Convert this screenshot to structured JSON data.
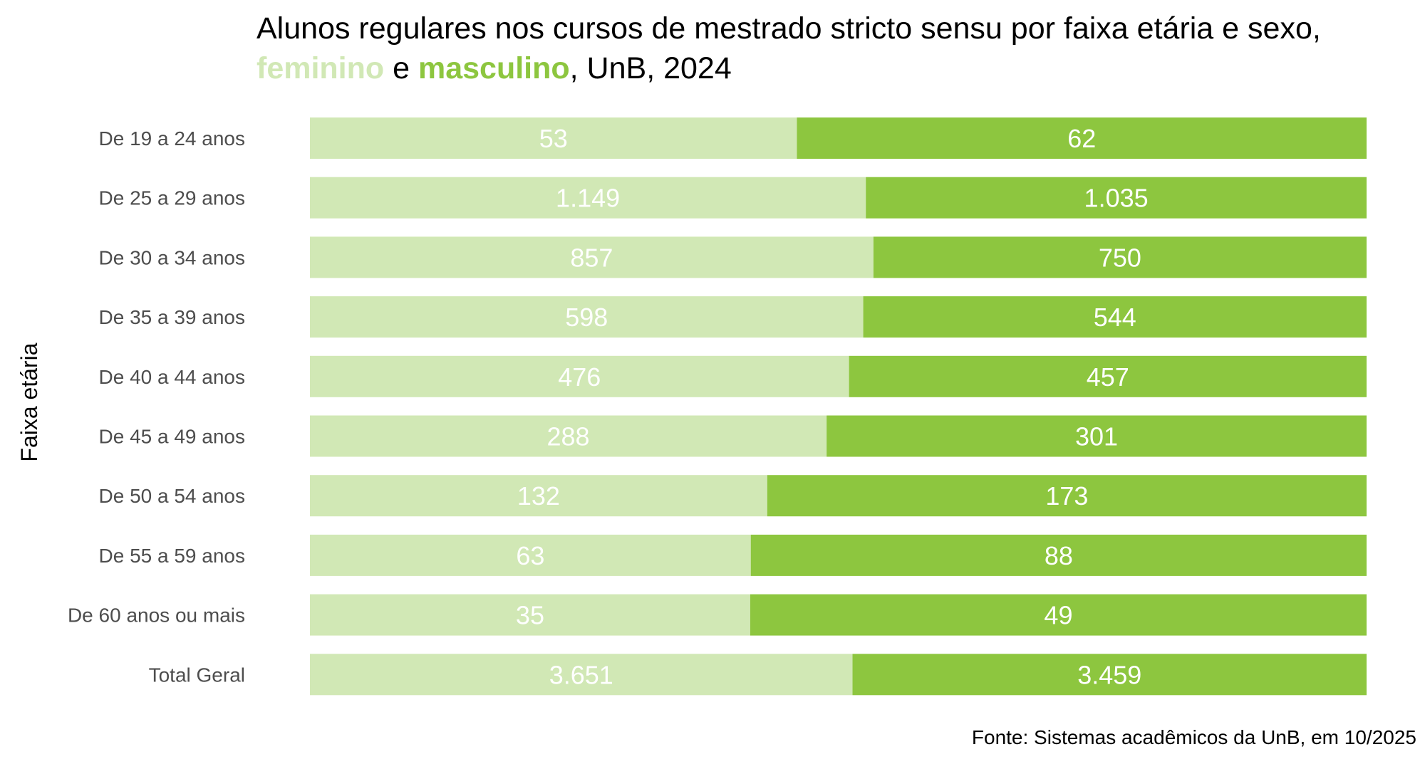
{
  "chart_data": {
    "type": "bar",
    "stacked": "percent",
    "orientation": "horizontal",
    "title": {
      "line1": "Alunos regulares nos cursos de mestrado stricto sensu por faixa etária e sexo,",
      "line2_feminino": "feminino",
      "line2_e": " e ",
      "line2_masculino": "masculino",
      "line2_rest": ", UnB, 2024"
    },
    "ylabel": "Faixa etária",
    "xlabel": "",
    "source": "Fonte: Sistemas acadêmicos da UnB, em 10/2025",
    "categories": [
      "De 19 a 24 anos",
      "De 25 a 29 anos",
      "De 30 a 34 anos",
      "De 35 a 39 anos",
      "De 40 a 44 anos",
      "De 45 a 49 anos",
      "De 50 a 54 anos",
      "De 55 a 59 anos",
      "De 60 anos ou mais",
      "Total Geral"
    ],
    "series": [
      {
        "name": "feminino",
        "color": "#d1e8b5",
        "values": [
          53,
          1149,
          857,
          598,
          476,
          288,
          132,
          63,
          35,
          3651
        ],
        "labels": [
          "53",
          "1.149",
          "857",
          "598",
          "476",
          "288",
          "132",
          "63",
          "35",
          "3.651"
        ]
      },
      {
        "name": "masculino",
        "color": "#8dc63f",
        "values": [
          62,
          1035,
          750,
          544,
          457,
          301,
          173,
          88,
          49,
          3459
        ],
        "labels": [
          "62",
          "1.035",
          "750",
          "544",
          "457",
          "301",
          "173",
          "88",
          "49",
          "3.459"
        ]
      }
    ],
    "grid": false,
    "legend": "none"
  }
}
